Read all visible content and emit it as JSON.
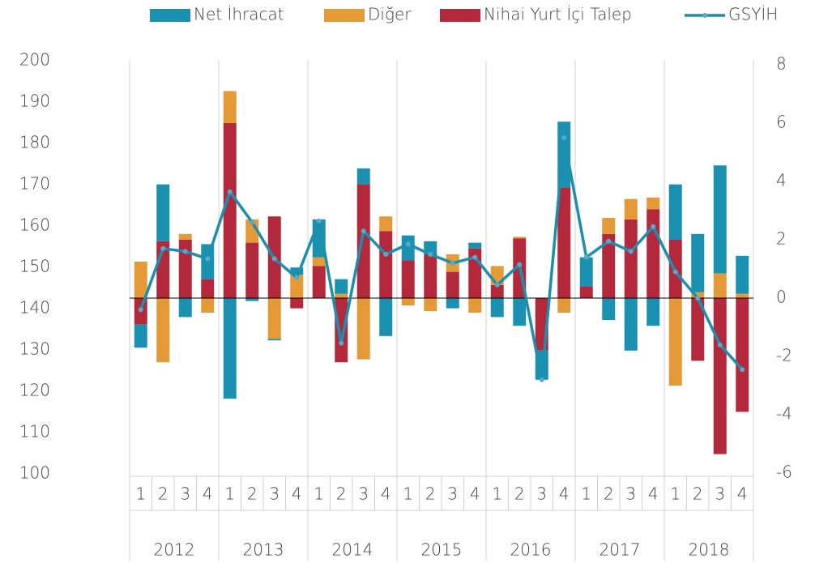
{
  "chart_data": {
    "type": "bar",
    "stacked": true,
    "categories": [
      "1",
      "2",
      "3",
      "4",
      "1",
      "2",
      "3",
      "4",
      "1",
      "2",
      "3",
      "4",
      "1",
      "2",
      "3",
      "4",
      "1",
      "2",
      "3",
      "4",
      "1",
      "2",
      "3",
      "4",
      "1",
      "2",
      "3",
      "4"
    ],
    "groups": [
      "2012",
      "2013",
      "2014",
      "2015",
      "2016",
      "2017",
      "2018"
    ],
    "ylim": [
      100,
      200
    ],
    "yticks": [
      100,
      110,
      120,
      130,
      140,
      150,
      160,
      170,
      180,
      190,
      200
    ],
    "y2lim": [
      -6,
      8
    ],
    "y2ticks": [
      -6,
      -4,
      -2,
      0,
      2,
      4,
      6,
      8
    ],
    "legend": "top",
    "series": [
      {
        "name": "Net İhracat",
        "type": "bar",
        "axis": "y2",
        "color": "#1b91b1",
        "values": [
          -0.8,
          1.95,
          -0.65,
          1.2,
          -3.45,
          -0.1,
          -0.05,
          0.25,
          1.3,
          0.5,
          0.55,
          -1.3,
          0.85,
          0.45,
          -0.35,
          0.2,
          -0.65,
          -0.95,
          -1.0,
          2.25,
          1.0,
          -0.75,
          -1.8,
          -0.95,
          1.9,
          2.0,
          3.7,
          1.3
        ]
      },
      {
        "name": "Diğer",
        "type": "bar",
        "axis": "y2",
        "color": "#e39a37",
        "values": [
          1.25,
          -2.2,
          0.2,
          -0.5,
          1.1,
          0.8,
          -1.4,
          0.8,
          0.3,
          0.15,
          -2.1,
          0.5,
          -0.25,
          -0.45,
          0.6,
          -0.5,
          0.65,
          0.05,
          0,
          -0.5,
          0,
          0.55,
          0.7,
          0.4,
          -3.0,
          0.2,
          0.85,
          0.15
        ]
      },
      {
        "name": "Nihai Yurt İçi Talep",
        "type": "bar",
        "axis": "y2",
        "color": "#b3283b",
        "values": [
          -0.9,
          1.95,
          2.0,
          0.65,
          6.0,
          1.9,
          2.8,
          -0.35,
          1.1,
          -2.2,
          3.9,
          2.3,
          1.3,
          1.5,
          0.9,
          1.7,
          0.45,
          2.05,
          -1.8,
          3.8,
          0.4,
          2.2,
          2.7,
          3.05,
          2.0,
          -2.15,
          -5.35,
          -3.9
        ]
      },
      {
        "name": "GSYİH",
        "type": "line",
        "axis": "y2",
        "color": "#1c8fae",
        "values": [
          -0.4,
          1.7,
          1.6,
          1.35,
          3.65,
          2.6,
          1.35,
          0.7,
          2.65,
          -1.55,
          2.3,
          1.5,
          1.85,
          1.5,
          1.2,
          1.4,
          0.45,
          1.15,
          -2.8,
          5.5,
          1.4,
          1.95,
          1.6,
          2.45,
          0.9,
          0,
          -1.6,
          -2.45
        ]
      }
    ]
  }
}
